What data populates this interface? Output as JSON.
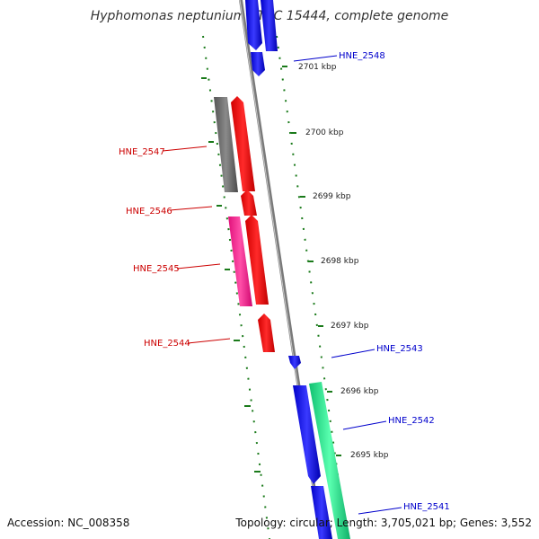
{
  "title": "Hyphomonas neptunium ATCC 15444, complete genome",
  "footer": {
    "accession": "Accession: NC_008358",
    "topology": "Topology: circular; Length: 3,705,021 bp; Genes: 3,552"
  },
  "scale_labels": [
    "2701 kbp",
    "2700 kbp",
    "2699 kbp",
    "2698 kbp",
    "2697 kbp",
    "2696 kbp",
    "2695 kbp"
  ],
  "gene_labels_left": [
    "HNE_2547",
    "HNE_2546",
    "HNE_2545",
    "HNE_2544"
  ],
  "gene_labels_right": [
    "HNE_2548",
    "HNE_2543",
    "HNE_2542",
    "HNE_2541"
  ],
  "colors": {
    "forward_strand": "#0000ff",
    "reverse_strand": "#ff0000",
    "pseudogene": "#666666",
    "rna": "#ff1493",
    "other": "#22e88a",
    "tick": "#1a7a1a",
    "backbone": "#7a7a7a",
    "left_label": "#cc0000",
    "right_label": "#0000cc"
  }
}
